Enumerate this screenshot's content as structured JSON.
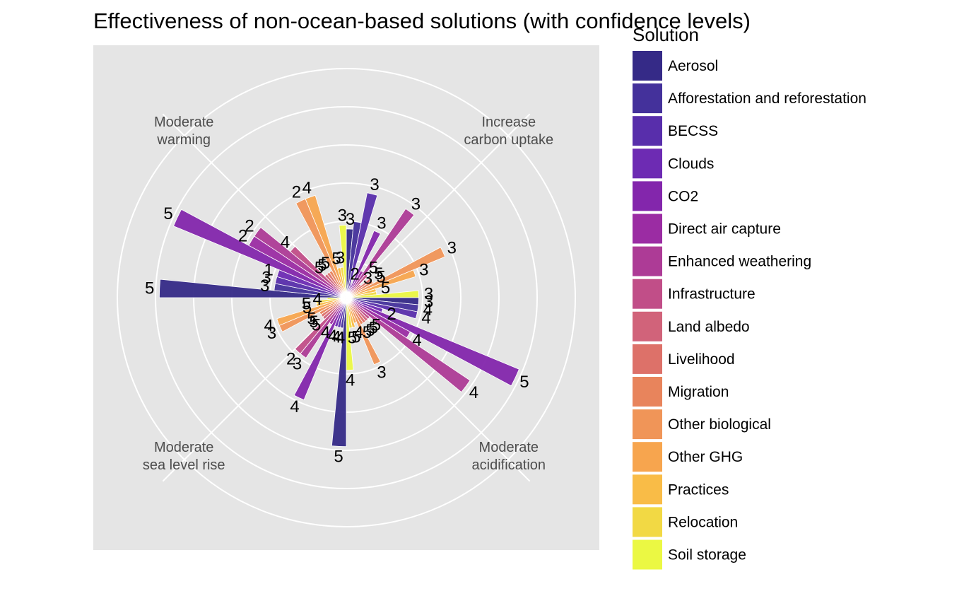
{
  "chart_data": {
    "type": "polar-bar",
    "title": "Effectiveness of non-ocean-based solutions (with confidence levels)",
    "legend_title": "Solution",
    "legend_position": "right",
    "grid": true,
    "categories": [
      "Increase\ncarbon uptake",
      "Moderate\nacidification",
      "Moderate\nsea level rise",
      "Moderate\nwarming"
    ],
    "solutions": [
      "Aerosol",
      "Afforestation and reforestation",
      "BECSS",
      "Clouds",
      "CO2",
      "Direct air capture",
      "Enhanced weathering",
      "Infrastructure",
      "Land albedo",
      "Livelihood",
      "Migration",
      "Other biological",
      "Other GHG",
      "Practices",
      "Relocation",
      "Soil storage"
    ],
    "colors": [
      "#352a87",
      "#44319b",
      "#582eab",
      "#6d2bb3",
      "#8326ac",
      "#9b2ca3",
      "#ad3b96",
      "#c14e88",
      "#d1637a",
      "#dd7169",
      "#e8845c",
      "#f09558",
      "#f7a54e",
      "#f9bc47",
      "#f2d944",
      "#ebf843"
    ],
    "r_max": 5,
    "series": [
      {
        "category": "Increase\ncarbon uptake",
        "bars": [
          {
            "solution": "Aerosol",
            "value": 1.8,
            "confidence": "3"
          },
          {
            "solution": "Afforestation and reforestation",
            "value": 2.0,
            "confidence": ""
          },
          {
            "solution": "BECSS",
            "value": 2.8,
            "confidence": "3"
          },
          {
            "solution": "Clouds",
            "value": 0.4,
            "confidence": "2"
          },
          {
            "solution": "CO2",
            "value": 1.9,
            "confidence": "3"
          },
          {
            "solution": "Direct air capture",
            "value": 0.8,
            "confidence": ""
          },
          {
            "solution": "Enhanced weathering",
            "value": 2.8,
            "confidence": "3"
          },
          {
            "solution": "Infrastructure",
            "value": 0.8,
            "confidence": "5"
          },
          {
            "solution": "Land albedo",
            "value": 0.5,
            "confidence": "3"
          },
          {
            "solution": "Livelihood",
            "value": 0.8,
            "confidence": "5"
          },
          {
            "solution": "Migration",
            "value": 0.8,
            "confidence": "5"
          },
          {
            "solution": "Other biological",
            "value": 2.8,
            "confidence": "3"
          },
          {
            "solution": "Other GHG",
            "value": 1.9,
            "confidence": "3"
          },
          {
            "solution": "Practices",
            "value": 0.8,
            "confidence": "5"
          },
          {
            "solution": "Relocation",
            "value": 0.8,
            "confidence": ""
          },
          {
            "solution": "Soil storage",
            "value": 1.9,
            "confidence": "3"
          }
        ]
      },
      {
        "category": "Moderate\nacidification",
        "bars": [
          {
            "solution": "Aerosol",
            "value": 1.9,
            "confidence": "3"
          },
          {
            "solution": "Afforestation and reforestation",
            "value": 1.9,
            "confidence": "4"
          },
          {
            "solution": "BECSS",
            "value": 1.9,
            "confidence": "4"
          },
          {
            "solution": "Clouds",
            "value": 1.0,
            "confidence": "2"
          },
          {
            "solution": "CO2",
            "value": 4.9,
            "confidence": "5"
          },
          {
            "solution": "Direct air capture",
            "value": 1.9,
            "confidence": "4"
          },
          {
            "solution": "Enhanced weathering",
            "value": 3.9,
            "confidence": "4"
          },
          {
            "solution": "Infrastructure",
            "value": 0.8,
            "confidence": "5"
          },
          {
            "solution": "Land albedo",
            "value": 0.8,
            "confidence": "5"
          },
          {
            "solution": "Livelihood",
            "value": 0.8,
            "confidence": "5"
          },
          {
            "solution": "Migration",
            "value": 0.8,
            "confidence": "5"
          },
          {
            "solution": "Other biological",
            "value": 1.9,
            "confidence": "3"
          },
          {
            "solution": "Other GHG",
            "value": 0.7,
            "confidence": "4"
          },
          {
            "solution": "Practices",
            "value": 0.8,
            "confidence": "5"
          },
          {
            "solution": "Relocation",
            "value": 0.8,
            "confidence": "5"
          },
          {
            "solution": "Soil storage",
            "value": 1.9,
            "confidence": "4"
          }
        ]
      },
      {
        "category": "Moderate\nsea level rise",
        "bars": [
          {
            "solution": "Aerosol",
            "value": 3.9,
            "confidence": "5"
          },
          {
            "solution": "Afforestation and reforestation",
            "value": 0.8,
            "confidence": "4"
          },
          {
            "solution": "BECSS",
            "value": 0.8,
            "confidence": "4"
          },
          {
            "solution": "Clouds",
            "value": 0.8,
            "confidence": "4"
          },
          {
            "solution": "CO2",
            "value": 2.9,
            "confidence": "4"
          },
          {
            "solution": "Direct air capture",
            "value": 0.8,
            "confidence": "4"
          },
          {
            "solution": "Enhanced weathering",
            "value": 1.9,
            "confidence": "3"
          },
          {
            "solution": "Infrastructure",
            "value": 1.9,
            "confidence": "2"
          },
          {
            "solution": "Land albedo",
            "value": 0.8,
            "confidence": "5"
          },
          {
            "solution": "Livelihood",
            "value": 0.8,
            "confidence": "5"
          },
          {
            "solution": "Migration",
            "value": 0.8,
            "confidence": "5"
          },
          {
            "solution": "Other biological",
            "value": 1.9,
            "confidence": "3"
          },
          {
            "solution": "Other GHG",
            "value": 1.9,
            "confidence": "4"
          },
          {
            "solution": "Practices",
            "value": 0.8,
            "confidence": "5"
          },
          {
            "solution": "Relocation",
            "value": 0.8,
            "confidence": "5"
          },
          {
            "solution": "Soil storage",
            "value": 0.5,
            "confidence": "4"
          }
        ]
      },
      {
        "category": "Moderate\nwarming",
        "bars": [
          {
            "solution": "Aerosol",
            "value": 4.9,
            "confidence": "5"
          },
          {
            "solution": "Afforestation and reforestation",
            "value": 1.9,
            "confidence": "3"
          },
          {
            "solution": "BECSS",
            "value": 1.9,
            "confidence": "3"
          },
          {
            "solution": "Clouds",
            "value": 1.9,
            "confidence": "1"
          },
          {
            "solution": "CO2",
            "value": 4.9,
            "confidence": "5"
          },
          {
            "solution": "Direct air capture",
            "value": 2.9,
            "confidence": "2"
          },
          {
            "solution": "Enhanced weathering",
            "value": 2.9,
            "confidence": "2"
          },
          {
            "solution": "Infrastructure",
            "value": 1.9,
            "confidence": "4"
          },
          {
            "solution": "Land albedo",
            "value": 0.8,
            "confidence": "5"
          },
          {
            "solution": "Livelihood",
            "value": 0.8,
            "confidence": "5"
          },
          {
            "solution": "Migration",
            "value": 0.8,
            "confidence": "5"
          },
          {
            "solution": "Other biological",
            "value": 2.8,
            "confidence": "2"
          },
          {
            "solution": "Other GHG",
            "value": 2.8,
            "confidence": "4"
          },
          {
            "solution": "Practices",
            "value": 0.8,
            "confidence": "5"
          },
          {
            "solution": "Relocation",
            "value": 0.8,
            "confidence": "3"
          },
          {
            "solution": "Soil storage",
            "value": 1.9,
            "confidence": "3"
          }
        ]
      }
    ]
  }
}
